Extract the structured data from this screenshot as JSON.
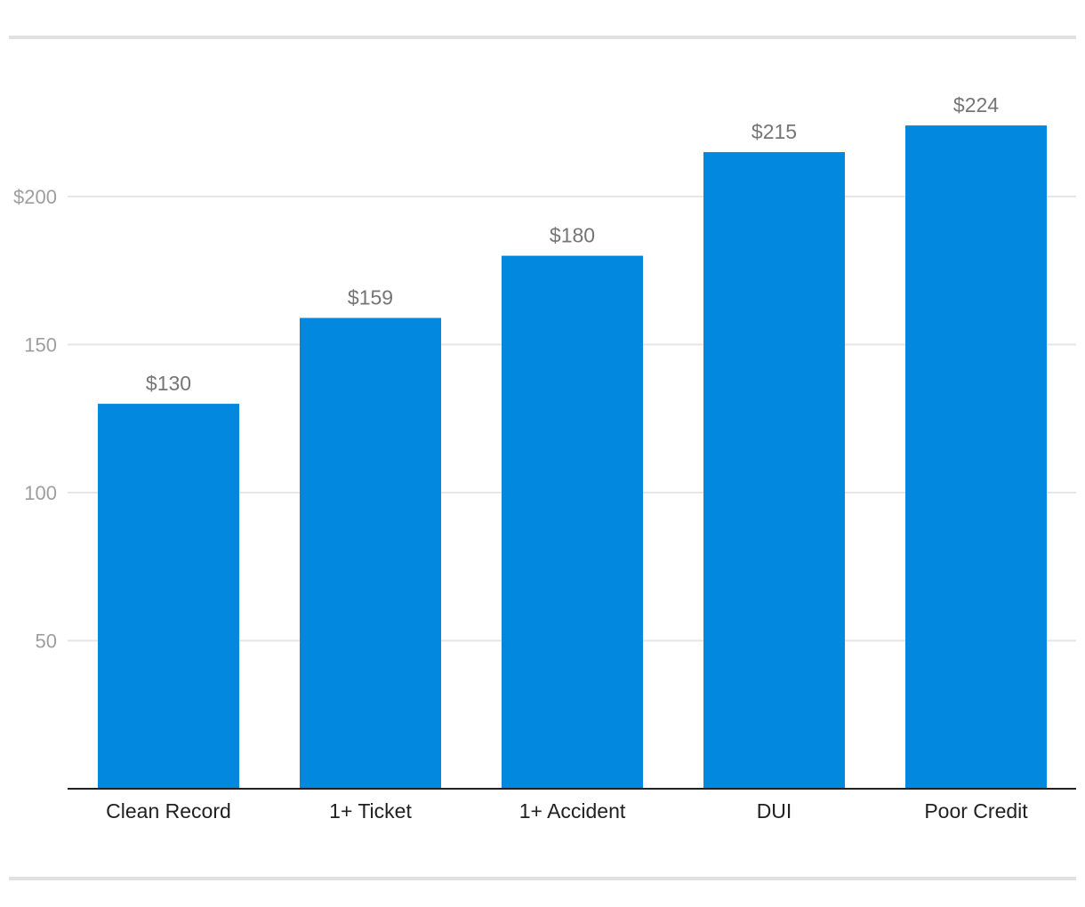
{
  "chart_data": {
    "type": "bar",
    "title": "",
    "xlabel": "",
    "ylabel": "",
    "categories": [
      "Clean Record",
      "1+ Ticket",
      "1+ Accident",
      "DUI",
      "Poor Credit"
    ],
    "values": [
      130,
      159,
      180,
      215,
      224
    ],
    "data_labels": [
      "$130",
      "$159",
      "$180",
      "$215",
      "$224"
    ],
    "ylim": [
      0,
      240
    ],
    "yticks": [
      50,
      100,
      150,
      200
    ],
    "ytick_labels": [
      "50",
      "100",
      "150",
      "$200"
    ],
    "grid": true,
    "legend": "none",
    "bar_color": "#0288de",
    "grid_color": "#e6e6e6",
    "axis_color": "#212121"
  }
}
